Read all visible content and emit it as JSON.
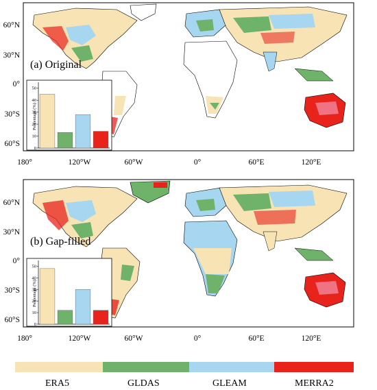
{
  "colors": {
    "ERA5": "#f7e3b4",
    "GLDAS": "#6fb26a",
    "GLEAM": "#a6d6f0",
    "MERRA2": "#e8231c",
    "frame": "#000000"
  },
  "map_axes": {
    "lon_ticks": [
      "180°",
      "120°W",
      "60°W",
      "0°",
      "60°E",
      "120°E"
    ],
    "lat_ticks": [
      "60°N",
      "30°N",
      "0°",
      "30°S",
      "60°S"
    ]
  },
  "legend": {
    "items": [
      "ERA5",
      "GLDAS",
      "GLEAM",
      "MERRA2"
    ]
  },
  "chart_data": [
    {
      "type": "bar",
      "panel": "(a) Original",
      "ylabel": "Percentage (%)",
      "ylim": [
        0,
        55
      ],
      "yticks": [
        "0",
        "10",
        "20",
        "30",
        "40",
        "50"
      ],
      "categories": [
        "ERA5",
        "GLDAS",
        "GLEAM",
        "MERRA2"
      ],
      "values": [
        45,
        13,
        28,
        14
      ]
    },
    {
      "type": "bar",
      "panel": "(b) Gap-filled",
      "ylabel": "Percentage (%)",
      "ylim": [
        0,
        55
      ],
      "yticks": [
        "0",
        "10",
        "20",
        "30",
        "40",
        "50"
      ],
      "categories": [
        "ERA5",
        "GLDAS",
        "GLEAM",
        "MERRA2"
      ],
      "values": [
        48,
        12,
        30,
        12
      ]
    }
  ]
}
